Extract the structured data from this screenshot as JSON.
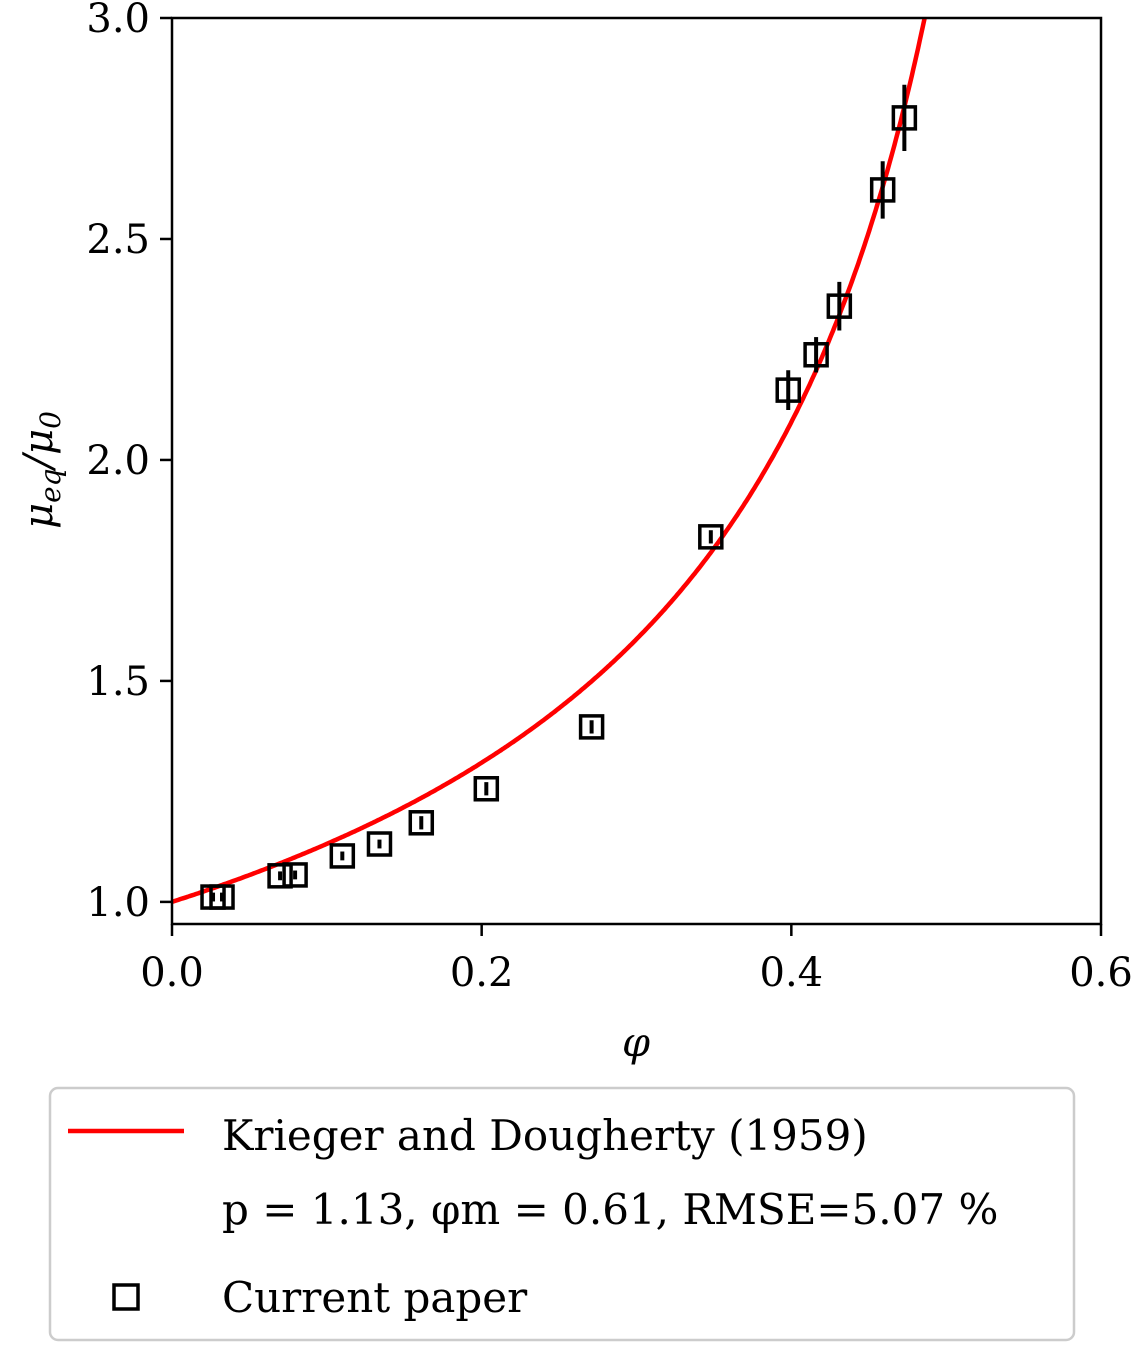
{
  "chart_data": {
    "type": "scatter",
    "title": "",
    "xlabel": "φ",
    "ylabel": "μeq/μ0",
    "ylabel_main": "μ",
    "ylabel_sub1": "eq",
    "ylabel_div": "/μ",
    "ylabel_sub2": "0",
    "xlim": [
      0,
      0.6
    ],
    "ylim": [
      0.95,
      3.0
    ],
    "xticks": [
      0.0,
      0.2,
      0.4,
      0.6
    ],
    "xtick_labels": [
      "0.0",
      "0.2",
      "0.4",
      "0.6"
    ],
    "yticks": [
      1.0,
      1.5,
      2.0,
      2.5,
      3.0
    ],
    "ytick_labels": [
      "1.0",
      "1.5",
      "2.0",
      "2.5",
      "3.0"
    ],
    "grid": false,
    "legend_placement": "below",
    "series": [
      {
        "name": "Krieger and Dougherty (1959)",
        "name2": "p = 1.13, φm = 0.61, RMSE=5.07 %",
        "type": "line",
        "color": "#ff0000",
        "model": {
          "p": 1.13,
          "phi_m": 0.61
        }
      },
      {
        "name": "Current paper",
        "type": "scatter",
        "marker": "square",
        "color": "#000000",
        "x": [
          0.0265,
          0.0323,
          0.0698,
          0.0795,
          0.11,
          0.134,
          0.161,
          0.203,
          0.271,
          0.348,
          0.398,
          0.416,
          0.431,
          0.459,
          0.473
        ],
        "y": [
          1.011,
          1.011,
          1.059,
          1.061,
          1.104,
          1.131,
          1.179,
          1.256,
          1.396,
          1.826,
          2.158,
          2.238,
          2.348,
          2.611,
          2.774
        ],
        "yerr": [
          0.01,
          0.01,
          0.01,
          0.01,
          0.01,
          0.01,
          0.015,
          0.015,
          0.015,
          0.015,
          0.045,
          0.04,
          0.055,
          0.065,
          0.075
        ]
      }
    ]
  }
}
